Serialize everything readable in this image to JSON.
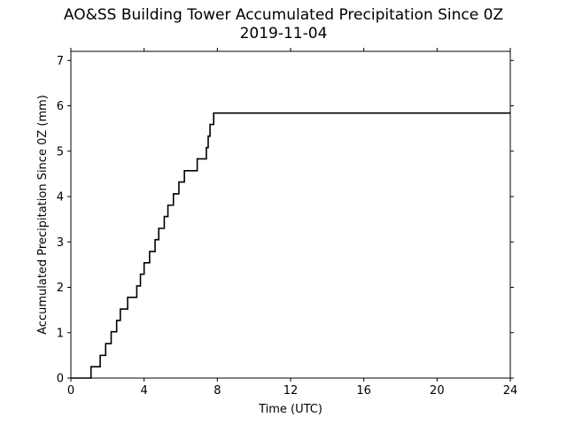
{
  "chart_data": {
    "type": "line",
    "title_line1": "AO&SS Building Tower Accumulated Precipitation Since 0Z",
    "title_line2": "2019-11-04",
    "xlabel": "Time (UTC)",
    "ylabel": "Accumulated Precipitation Since 0Z (mm)",
    "xlim": [
      0,
      24
    ],
    "ylim": [
      0,
      7.2
    ],
    "xticks": [
      0,
      4,
      8,
      12,
      16,
      20,
      24
    ],
    "yticks": [
      0,
      1,
      2,
      3,
      4,
      5,
      6,
      7
    ],
    "grid": false,
    "line_color": "#000000",
    "series": [
      {
        "step": "post",
        "x": [
          0.0,
          1.1,
          1.6,
          1.9,
          2.2,
          2.5,
          2.7,
          3.1,
          3.6,
          3.8,
          4.0,
          4.3,
          4.6,
          4.8,
          5.1,
          5.3,
          5.6,
          5.9,
          6.2,
          6.9,
          7.4,
          7.5,
          7.6,
          7.8,
          24.0
        ],
        "y": [
          0.0,
          0.25,
          0.5,
          0.76,
          1.02,
          1.27,
          1.52,
          1.78,
          2.03,
          2.29,
          2.54,
          2.79,
          3.05,
          3.3,
          3.56,
          3.81,
          4.06,
          4.32,
          4.57,
          4.83,
          5.08,
          5.33,
          5.59,
          5.84,
          5.84
        ]
      }
    ]
  }
}
